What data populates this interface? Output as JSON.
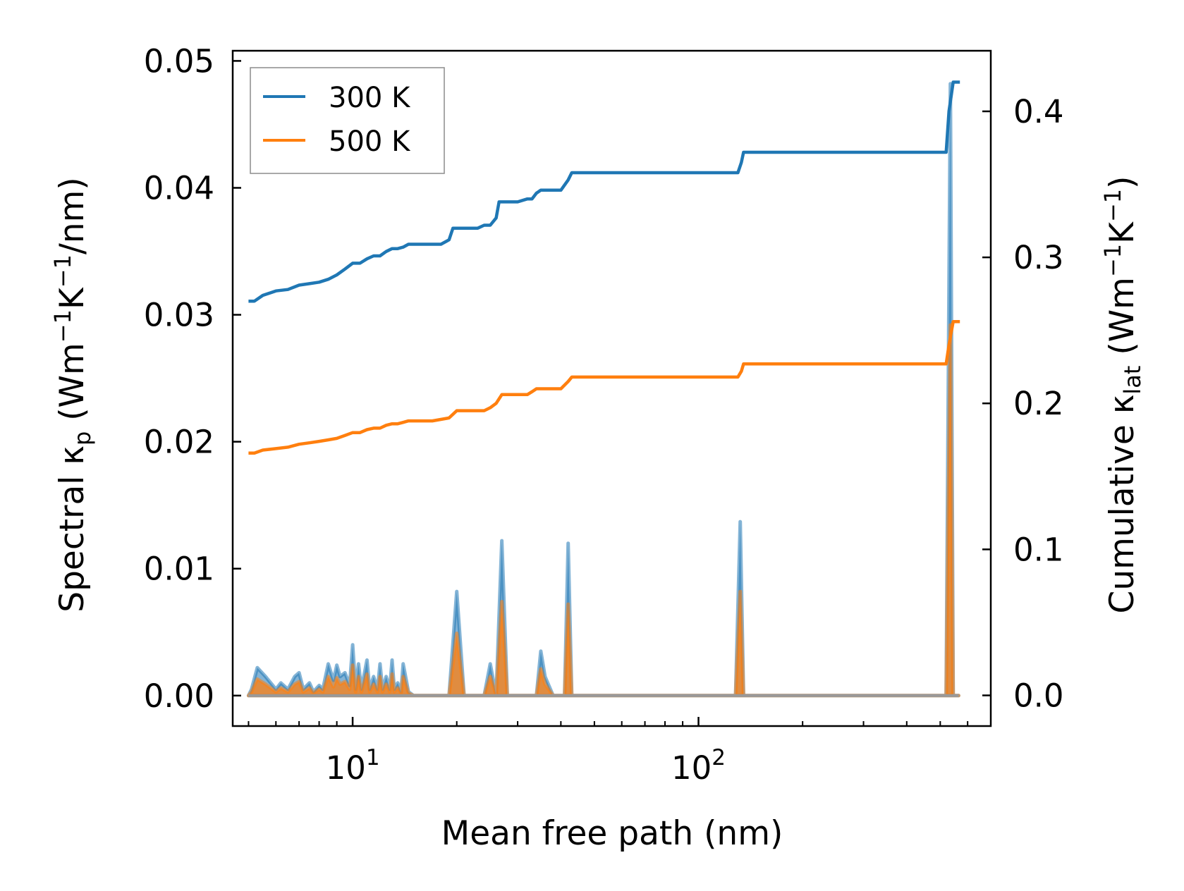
{
  "chart_data": {
    "type": "line",
    "x_scale": "log",
    "xlabel": "Mean free path (nm)",
    "xlim": [
      4.5,
      700
    ],
    "x_ticks": [
      {
        "value": 10,
        "base": "10",
        "exp": "1"
      },
      {
        "value": 100,
        "base": "10",
        "exp": "2"
      }
    ],
    "left_axis": {
      "label_prefix": "Spectral κ",
      "label_sub": "p",
      "label_unit_1": " (Wm",
      "label_exp_1": "−1",
      "label_unit_2": "K",
      "label_exp_2": "−1",
      "label_unit_3": "/nm)",
      "ylim": [
        -0.0024,
        0.0508
      ],
      "ticks": [
        "0.00",
        "0.01",
        "0.02",
        "0.03",
        "0.04",
        "0.05"
      ],
      "tick_values": [
        0,
        0.01,
        0.02,
        0.03,
        0.04,
        0.05
      ]
    },
    "right_axis": {
      "label_prefix": "Cumulative κ",
      "label_sub": "lat",
      "label_unit_1": " (Wm",
      "label_exp_1": "−1",
      "label_unit_2": "K",
      "label_exp_2": "−1",
      "label_unit_3": ")",
      "ylim": [
        -0.021,
        0.4415
      ],
      "ticks": [
        "0.0",
        "0.1",
        "0.2",
        "0.3",
        "0.4"
      ],
      "tick_values": [
        0,
        0.1,
        0.2,
        0.3,
        0.4
      ]
    },
    "legend": {
      "position": "top-left",
      "entries": [
        {
          "label": "300 K",
          "color": "#1f77b4"
        },
        {
          "label": "500 K",
          "color": "#ff7f0e"
        }
      ]
    },
    "cumulative_series": [
      {
        "name": "300 K",
        "color": "#1f77b4",
        "x": [
          5.0,
          5.2,
          5.5,
          6.0,
          6.5,
          7.0,
          7.5,
          8.0,
          8.5,
          9.0,
          9.5,
          10.0,
          10.5,
          11.0,
          11.5,
          12.0,
          12.5,
          13.0,
          13.5,
          14.0,
          14.5,
          15.0,
          16.0,
          17.0,
          18.0,
          19.0,
          19.5,
          20.0,
          21.0,
          23.0,
          24.0,
          25.0,
          26.0,
          26.5,
          27.0,
          30.0,
          32.0,
          33.0,
          34.0,
          35.0,
          36.0,
          40.0,
          42.0,
          43.0,
          60.0,
          100.0,
          130.0,
          133.0,
          135.0,
          200.0,
          400.0,
          520.0,
          530.0,
          545.0,
          570.0
        ],
        "y": [
          0.27,
          0.27,
          0.274,
          0.277,
          0.278,
          0.281,
          0.282,
          0.283,
          0.285,
          0.288,
          0.292,
          0.296,
          0.296,
          0.299,
          0.301,
          0.301,
          0.304,
          0.306,
          0.306,
          0.307,
          0.309,
          0.309,
          0.309,
          0.309,
          0.309,
          0.312,
          0.32,
          0.32,
          0.32,
          0.32,
          0.322,
          0.322,
          0.327,
          0.338,
          0.338,
          0.338,
          0.34,
          0.34,
          0.344,
          0.346,
          0.346,
          0.346,
          0.353,
          0.358,
          0.358,
          0.358,
          0.358,
          0.365,
          0.372,
          0.372,
          0.372,
          0.372,
          0.4,
          0.42,
          0.42
        ]
      },
      {
        "name": "500 K",
        "color": "#ff7f0e",
        "x": [
          5.0,
          5.2,
          5.5,
          6.0,
          6.5,
          7.0,
          7.5,
          8.0,
          8.5,
          9.0,
          9.5,
          10.0,
          10.5,
          11.0,
          11.5,
          12.0,
          12.5,
          13.0,
          13.5,
          14.0,
          14.5,
          15.0,
          17.0,
          19.0,
          20.0,
          21.0,
          24.0,
          25.0,
          26.0,
          27.0,
          32.0,
          33.0,
          34.0,
          35.0,
          36.0,
          40.0,
          42.0,
          43.0,
          60.0,
          100.0,
          130.0,
          133.0,
          135.0,
          200.0,
          400.0,
          520.0,
          530.0,
          545.0,
          570.0
        ],
        "y": [
          0.166,
          0.166,
          0.168,
          0.169,
          0.17,
          0.172,
          0.173,
          0.174,
          0.175,
          0.176,
          0.178,
          0.18,
          0.18,
          0.182,
          0.183,
          0.183,
          0.185,
          0.186,
          0.186,
          0.187,
          0.188,
          0.188,
          0.188,
          0.19,
          0.195,
          0.195,
          0.195,
          0.197,
          0.2,
          0.206,
          0.206,
          0.208,
          0.21,
          0.21,
          0.21,
          0.21,
          0.215,
          0.218,
          0.218,
          0.218,
          0.218,
          0.222,
          0.227,
          0.227,
          0.227,
          0.227,
          0.24,
          0.256,
          0.256
        ]
      }
    ],
    "spectral_series": [
      {
        "name": "300 K",
        "color": "#1f77b4",
        "x": [
          5.0,
          5.1,
          5.3,
          5.6,
          6.0,
          6.2,
          6.5,
          6.8,
          7.0,
          7.2,
          7.5,
          7.7,
          8.0,
          8.2,
          8.5,
          8.8,
          9.0,
          9.2,
          9.5,
          9.8,
          10.0,
          10.2,
          10.4,
          10.6,
          11.0,
          11.2,
          11.5,
          11.8,
          12.0,
          12.2,
          12.5,
          12.8,
          13.0,
          13.2,
          13.5,
          13.8,
          14.0,
          14.5,
          15.0,
          15.2,
          16.0,
          18.0,
          19.0,
          20.0,
          21.0,
          22.0,
          23.0,
          24.0,
          25.0,
          26.0,
          27.0,
          28.0,
          30.0,
          32.0,
          34.0,
          35.0,
          36.0,
          38.0,
          40.0,
          41.0,
          42.0,
          43.0,
          44.0,
          60.0,
          100.0,
          128.0,
          132.0,
          135.0,
          200.0,
          400.0,
          510.0,
          520.0,
          535.0,
          545.0,
          555.0,
          565.0
        ],
        "y": [
          0.0,
          0.0005,
          0.0022,
          0.0015,
          0.0005,
          0.001,
          0.0005,
          0.0015,
          0.0018,
          0.0005,
          0.001,
          0.0003,
          0.0008,
          0.0005,
          0.0025,
          0.0012,
          0.0024,
          0.0015,
          0.0018,
          0.0008,
          0.004,
          0.0005,
          0.0025,
          0.0005,
          0.0028,
          0.0005,
          0.0015,
          0.0005,
          0.0025,
          0.0005,
          0.0015,
          0.0005,
          0.0028,
          0.0005,
          0.001,
          0.0003,
          0.0025,
          0.0003,
          0.0,
          0.0,
          0.0,
          0.0,
          0.0,
          0.0082,
          0.0,
          0.0,
          0.0,
          0.0,
          0.0025,
          0.0,
          0.0122,
          0.0,
          0.0,
          0.0,
          0.0,
          0.0035,
          0.0015,
          0.0,
          0.0,
          0.0,
          0.012,
          0.0,
          0.0,
          0.0,
          0.0,
          0.0,
          0.0137,
          0.0,
          0.0,
          0.0,
          0.0,
          0.0,
          0.0482,
          0.0,
          0.0,
          0.0
        ]
      },
      {
        "name": "500 K",
        "color": "#ff7f0e",
        "x": [
          5.0,
          5.1,
          5.3,
          5.6,
          6.0,
          6.2,
          6.5,
          6.8,
          7.0,
          7.2,
          7.5,
          7.7,
          8.0,
          8.2,
          8.5,
          8.8,
          9.0,
          9.2,
          9.5,
          9.8,
          10.0,
          10.2,
          10.4,
          10.6,
          11.0,
          11.2,
          11.5,
          11.8,
          12.0,
          12.2,
          12.5,
          12.8,
          13.0,
          13.2,
          13.5,
          13.8,
          14.0,
          14.5,
          15.0,
          15.2,
          16.0,
          18.0,
          19.0,
          20.0,
          21.0,
          22.0,
          23.0,
          24.0,
          25.0,
          26.0,
          27.0,
          28.0,
          30.0,
          32.0,
          34.0,
          35.0,
          36.0,
          38.0,
          40.0,
          41.0,
          42.0,
          43.0,
          44.0,
          60.0,
          100.0,
          128.0,
          132.0,
          135.0,
          200.0,
          400.0,
          510.0,
          520.0,
          535.0,
          545.0,
          555.0,
          565.0
        ],
        "y": [
          0.0,
          0.0003,
          0.0013,
          0.0009,
          0.0003,
          0.0006,
          0.0003,
          0.0009,
          0.0011,
          0.0003,
          0.0006,
          0.0002,
          0.0005,
          0.0003,
          0.0015,
          0.0007,
          0.0014,
          0.0009,
          0.0011,
          0.0005,
          0.0024,
          0.0003,
          0.0015,
          0.0003,
          0.0017,
          0.0003,
          0.0009,
          0.0003,
          0.0015,
          0.0003,
          0.0009,
          0.0003,
          0.0017,
          0.0003,
          0.0006,
          0.0002,
          0.0015,
          0.0002,
          0.0,
          0.0,
          0.0,
          0.0,
          0.0,
          0.0049,
          0.0,
          0.0,
          0.0,
          0.0,
          0.0015,
          0.0,
          0.0074,
          0.0,
          0.0,
          0.0,
          0.0,
          0.0021,
          0.0009,
          0.0,
          0.0,
          0.0,
          0.0072,
          0.0,
          0.0,
          0.0,
          0.0,
          0.0,
          0.0082,
          0.0,
          0.0,
          0.0,
          0.0,
          0.0,
          0.0292,
          0.0,
          0.0,
          0.0
        ]
      }
    ]
  }
}
